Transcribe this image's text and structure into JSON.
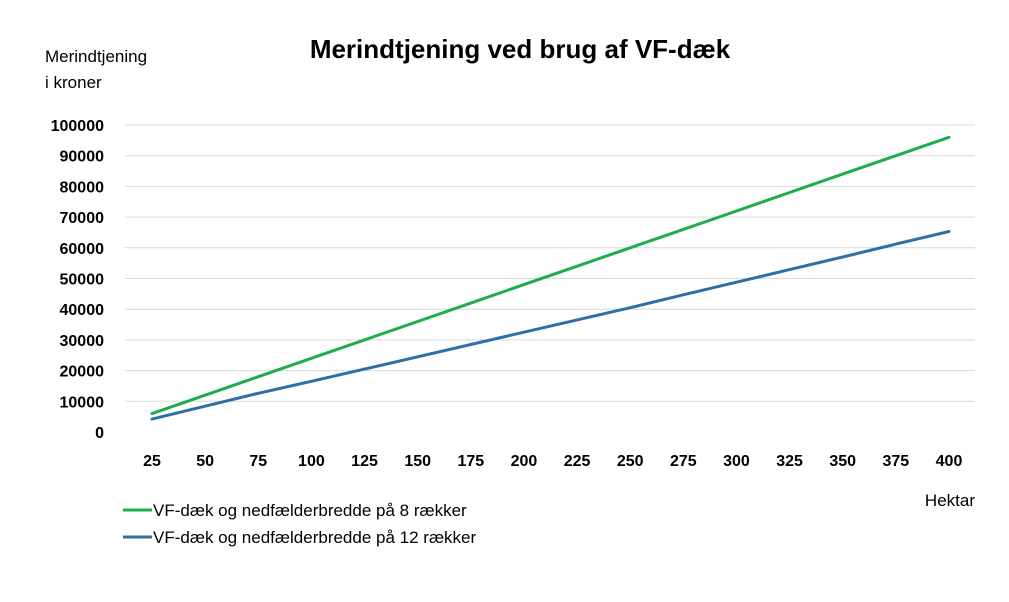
{
  "chart_data": {
    "type": "line",
    "title": "Merindtjening ved brug af VF-dæk",
    "ylabel_lines": [
      "Merindtjening",
      "i kroner"
    ],
    "xlabel": "Hektar",
    "x": [
      25,
      50,
      75,
      100,
      125,
      150,
      175,
      200,
      225,
      250,
      275,
      300,
      325,
      350,
      375,
      400
    ],
    "ylim": [
      0,
      100000
    ],
    "yticks": [
      "0",
      "10000",
      "20000",
      "30000",
      "40000",
      "50000",
      "60000",
      "70000",
      "80000",
      "90000",
      "100000"
    ],
    "xticks": [
      "25",
      "50",
      "75",
      "100",
      "125",
      "150",
      "175",
      "200",
      "225",
      "250",
      "275",
      "300",
      "325",
      "350",
      "375",
      "400"
    ],
    "grid": true,
    "legend_position": "bottom-left",
    "series": [
      {
        "name": "VF-dæk og nedfælderbredde på 8 rækker",
        "color": "#1eac4e",
        "values": [
          6000,
          12000,
          18000,
          24000,
          30000,
          36000,
          42000,
          48000,
          54000,
          60000,
          66000,
          72000,
          78000,
          84000,
          90000,
          96000
        ]
      },
      {
        "name": "VF-dæk og nedfælderbredde på 12 rækker",
        "color": "#2e6fa8",
        "values": [
          4200,
          8400,
          12600,
          16500,
          20500,
          24500,
          28500,
          32500,
          36500,
          40500,
          44700,
          48800,
          52900,
          57000,
          61200,
          65300
        ]
      }
    ]
  }
}
